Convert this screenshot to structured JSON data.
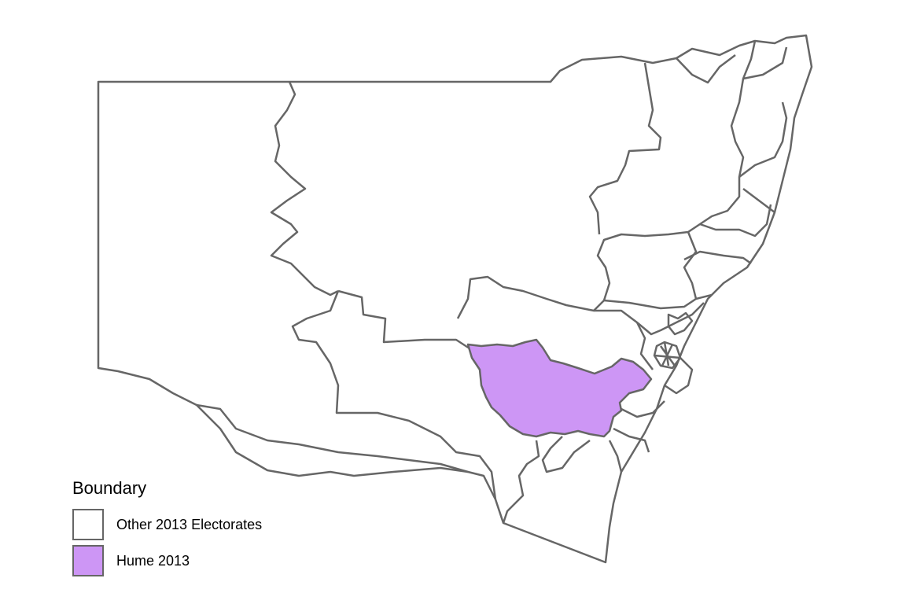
{
  "legend": {
    "title": "Boundary",
    "items": [
      {
        "label": "Other 2013 Electorates",
        "color": "#ffffff"
      },
      {
        "label": "Hume 2013",
        "color": "#cd96f5"
      }
    ]
  },
  "colors": {
    "border": "#666666",
    "highlight": "#cd96f5",
    "background": "#ffffff"
  }
}
